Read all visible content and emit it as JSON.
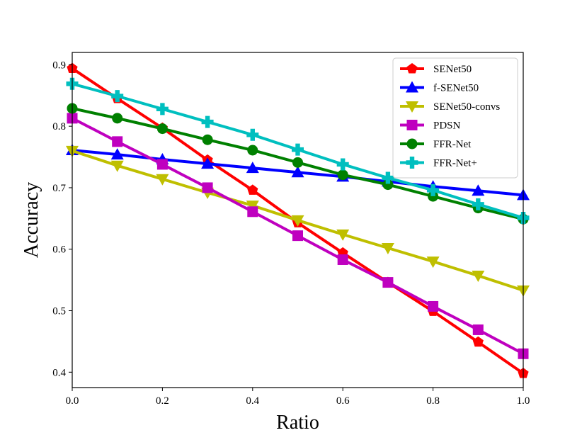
{
  "chart_data": {
    "type": "line",
    "title": "",
    "xlabel": "Ratio",
    "ylabel": "Accuracy",
    "xlim": [
      0.0,
      1.0
    ],
    "ylim": [
      0.375,
      0.92
    ],
    "xticks": [
      0.0,
      0.2,
      0.4,
      0.6,
      0.8,
      1.0
    ],
    "xtick_labels": [
      "0.0",
      "0.2",
      "0.4",
      "0.6",
      "0.8",
      "1.0"
    ],
    "yticks": [
      0.4,
      0.5,
      0.6,
      0.7,
      0.8,
      0.9
    ],
    "ytick_labels": [
      "0.4",
      "0.5",
      "0.6",
      "0.7",
      "0.8",
      "0.9"
    ],
    "grid": false,
    "legend_position": "top-right",
    "x": [
      0.0,
      0.1,
      0.2,
      0.3,
      0.4,
      0.5,
      0.6,
      0.7,
      0.8,
      0.9,
      1.0
    ],
    "series": [
      {
        "name": "SENet50",
        "color": "#ff0000",
        "marker": "pentagon",
        "values": [
          0.894,
          0.845,
          0.797,
          0.745,
          0.696,
          0.643,
          0.594,
          0.546,
          0.499,
          0.449,
          0.398
        ]
      },
      {
        "name": "f-SENet50",
        "color": "#0000ff",
        "marker": "triangle-up",
        "values": [
          0.761,
          0.754,
          0.746,
          0.739,
          0.732,
          0.725,
          0.718,
          0.71,
          0.702,
          0.695,
          0.688
        ]
      },
      {
        "name": "SENet50-convs",
        "color": "#bfbf00",
        "marker": "triangle-down",
        "values": [
          0.76,
          0.736,
          0.714,
          0.692,
          0.671,
          0.647,
          0.624,
          0.602,
          0.58,
          0.557,
          0.533
        ]
      },
      {
        "name": "PDSN",
        "color": "#bf00bf",
        "marker": "square",
        "values": [
          0.813,
          0.775,
          0.738,
          0.7,
          0.661,
          0.622,
          0.583,
          0.546,
          0.507,
          0.469,
          0.43
        ]
      },
      {
        "name": "FFR-Net",
        "color": "#008000",
        "marker": "circle",
        "values": [
          0.829,
          0.813,
          0.796,
          0.778,
          0.761,
          0.741,
          0.721,
          0.705,
          0.686,
          0.667,
          0.649
        ]
      },
      {
        "name": "FFR-Net+",
        "color": "#00bfbf",
        "marker": "plus",
        "values": [
          0.869,
          0.849,
          0.828,
          0.807,
          0.786,
          0.762,
          0.738,
          0.716,
          0.696,
          0.673,
          0.651
        ]
      }
    ]
  }
}
